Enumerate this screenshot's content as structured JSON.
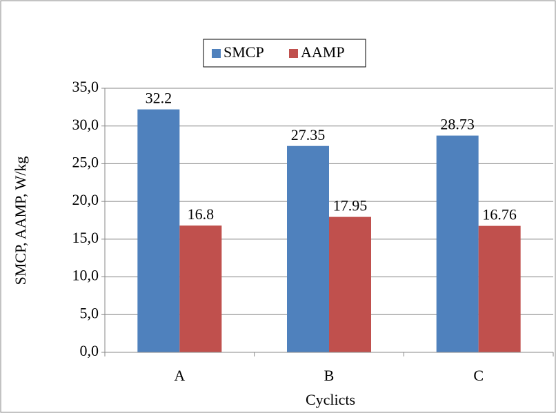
{
  "chart_data": {
    "type": "bar",
    "categories": [
      "A",
      "B",
      "C"
    ],
    "series": [
      {
        "name": "SMCP",
        "color": "#4f81bd",
        "values": [
          32.2,
          27.35,
          28.73
        ]
      },
      {
        "name": "AAMP",
        "color": "#c0504d",
        "values": [
          16.8,
          17.95,
          16.76
        ]
      }
    ],
    "ylabel": "SMCP, AAMP, W/kg",
    "xlabel": "Cyclicts",
    "ylim": [
      0,
      35
    ],
    "yticks": [
      {
        "value": 0,
        "label": "0,0"
      },
      {
        "value": 5,
        "label": "5,0"
      },
      {
        "value": 10,
        "label": "10,0"
      },
      {
        "value": 15,
        "label": "15,0"
      },
      {
        "value": 20,
        "label": "20,0"
      },
      {
        "value": 25,
        "label": "25,0"
      },
      {
        "value": 30,
        "label": "30,0"
      },
      {
        "value": 35,
        "label": "35,0"
      }
    ],
    "grid": true,
    "legend": "top"
  }
}
